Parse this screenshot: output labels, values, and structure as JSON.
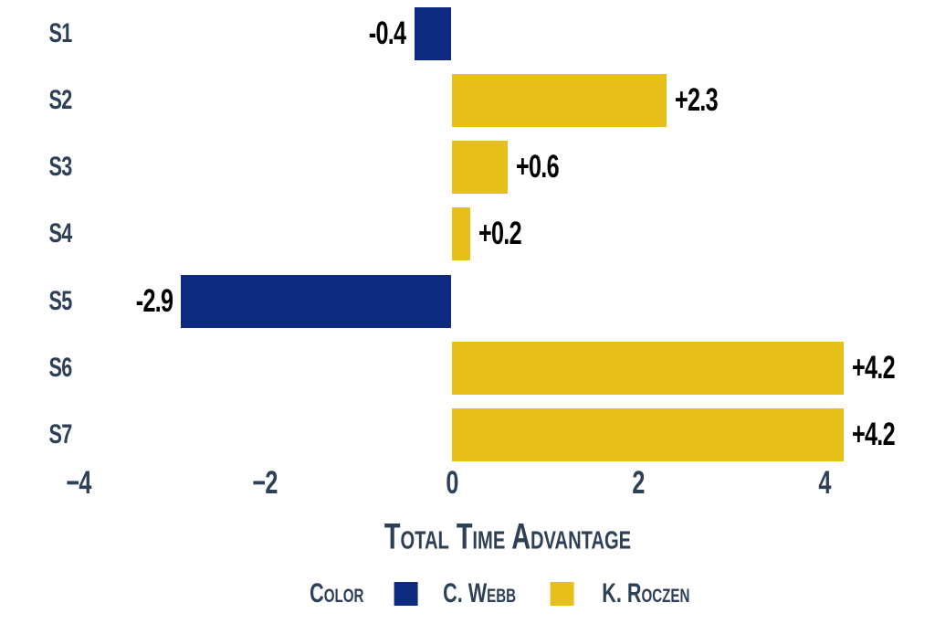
{
  "chart_data": {
    "type": "bar",
    "orientation": "horizontal",
    "categories": [
      "S1",
      "S2",
      "S3",
      "S4",
      "S5",
      "S6",
      "S7"
    ],
    "values": [
      -0.4,
      2.3,
      0.6,
      0.2,
      -2.9,
      4.2,
      4.2
    ],
    "bar_labels": [
      "-0.4",
      "+2.3",
      "+0.6",
      "+0.2",
      "-2.9",
      "+4.2",
      "+4.2"
    ],
    "bar_series": [
      "C. Webb",
      "K. Roczen",
      "K. Roczen",
      "K. Roczen",
      "C. Webb",
      "K. Roczen",
      "K. Roczen"
    ],
    "xlabel": "Total Time Advantage",
    "ylabel": "",
    "x_ticks": [
      "−4",
      "−2",
      "0",
      "2",
      "4"
    ],
    "x_tick_values": [
      -4,
      -2,
      0,
      2,
      4
    ],
    "xlim": [
      -4.4,
      5.2
    ],
    "grid": false,
    "legend": {
      "title": "Color",
      "position": "bottom",
      "entries": [
        {
          "label": "C. Webb",
          "color": "#0e2a7e"
        },
        {
          "label": "K. Roczen",
          "color": "#e6c019"
        }
      ]
    },
    "colors": {
      "negative": "#0e2a7e",
      "positive": "#e6c019",
      "axis_text": "#2d4057",
      "value_label": "#000000",
      "background": "#ffffff"
    }
  }
}
